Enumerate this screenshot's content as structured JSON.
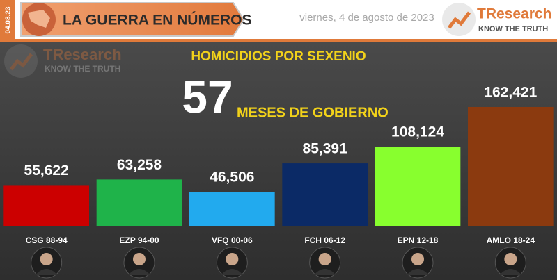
{
  "header": {
    "title": "LA GUERRA EN NÚMEROS",
    "date": "viernes, 4 de agosto de 2023",
    "side_date": "04.08.23",
    "logo": {
      "name": "TResearch",
      "tagline": "KNOW THE TRUTH"
    }
  },
  "watermark": {
    "name": "TResearch",
    "tagline": "KNOW THE TRUTH"
  },
  "chart_data": {
    "type": "bar",
    "title": "HOMICIDIOS POR SEXENIO",
    "annotation": {
      "number": 57,
      "text": "MESES DE GOBIERNO"
    },
    "categories": [
      "CSG 88-94",
      "EZP 94-00",
      "VFQ 00-06",
      "FCH 06-12",
      "EPN 12-18",
      "AMLO 18-24"
    ],
    "values": [
      55622,
      63258,
      46506,
      85391,
      108124,
      162421
    ],
    "value_labels": [
      "55,622",
      "63,258",
      "46,506",
      "85,391",
      "108,124",
      "162,421"
    ],
    "colors": [
      "#cc0000",
      "#1fb34a",
      "#22aaee",
      "#0b2a66",
      "#88ff2e",
      "#8b3a0f"
    ],
    "ylim": [
      0,
      170000
    ]
  }
}
